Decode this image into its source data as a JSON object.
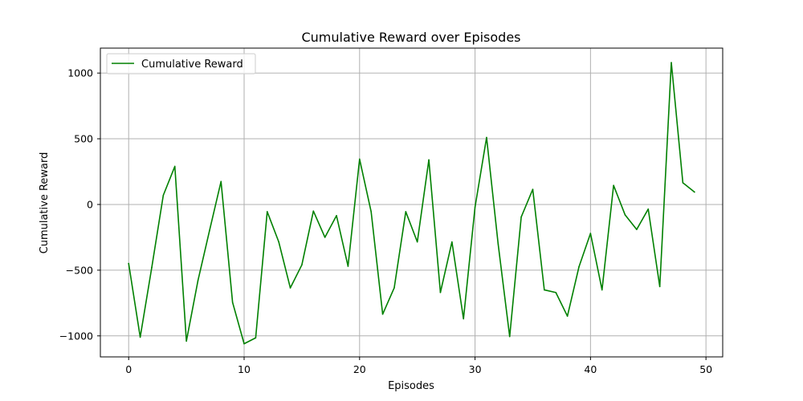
{
  "chart_data": {
    "type": "line",
    "title": "Cumulative Reward over Episodes",
    "xlabel": "Episodes",
    "ylabel": "Cumulative Reward",
    "xlim": [
      -2.45,
      51.45
    ],
    "ylim": [
      -1160,
      1190
    ],
    "xticks": [
      0,
      10,
      20,
      30,
      40,
      50
    ],
    "yticks": [
      -1000,
      -500,
      0,
      500,
      1000
    ],
    "xtick_labels": [
      "0",
      "10",
      "20",
      "30",
      "40",
      "50"
    ],
    "ytick_labels": [
      "−1000",
      "−500",
      "0",
      "500",
      "1000"
    ],
    "grid": true,
    "legend": {
      "position": "top-left"
    },
    "series": [
      {
        "name": "Cumulative Reward",
        "color": "#008000",
        "x": [
          0,
          1,
          2,
          3,
          4,
          5,
          6,
          7,
          8,
          9,
          10,
          11,
          12,
          13,
          14,
          15,
          16,
          17,
          18,
          19,
          20,
          21,
          22,
          23,
          24,
          25,
          26,
          27,
          28,
          29,
          30,
          31,
          32,
          33,
          34,
          35,
          36,
          37,
          38,
          39,
          40,
          41,
          42,
          43,
          44,
          45,
          46,
          47,
          48,
          49
        ],
        "values": [
          -450,
          -1010,
          -480,
          70,
          290,
          -1040,
          -580,
          -200,
          175,
          -745,
          -1060,
          -1015,
          -55,
          -285,
          -635,
          -460,
          -50,
          -250,
          -85,
          -470,
          345,
          -55,
          -835,
          -635,
          -55,
          -285,
          340,
          -670,
          -285,
          -870,
          -20,
          510,
          -300,
          -1005,
          -95,
          115,
          -650,
          -670,
          -850,
          -475,
          -220,
          -650,
          145,
          -80,
          -190,
          -35,
          -625,
          1080,
          165,
          95
        ]
      }
    ]
  }
}
